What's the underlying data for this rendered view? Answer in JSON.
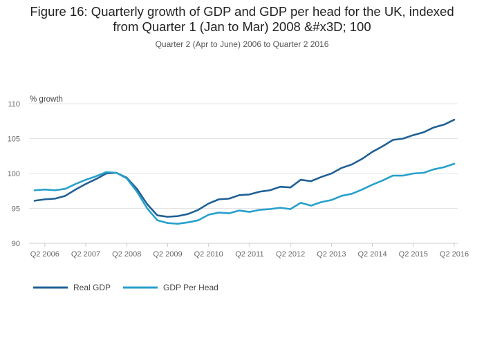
{
  "title_line1": "Figure 16: Quarterly growth of GDP and GDP per head for the UK, indexed",
  "title_line2": "from Quarter 1 (Jan to Mar) 2008 &#x3D; 100",
  "subtitle": "Quarter 2 (Apr to June) 2006 to Quarter 2 2016",
  "colors": {
    "real_gdp": "#206095",
    "gdp_per_head": "#27a0cc",
    "grid": "#e4e4e4",
    "axis": "#cccccc"
  },
  "chart_data": {
    "type": "line",
    "ylabel": "% growth",
    "ylim": [
      90,
      110
    ],
    "yticks": [
      90,
      95,
      100,
      105,
      110
    ],
    "x_tick_labels": [
      "Q2 2006",
      "Q2 2007",
      "Q2 2008",
      "Q2 2009",
      "Q2 2010",
      "Q2 2011",
      "Q2 2012",
      "Q2 2013",
      "Q2 2014",
      "Q2 2015",
      "Q2 2016"
    ],
    "categories": [
      "Q1 2006",
      "Q2 2006",
      "Q3 2006",
      "Q4 2006",
      "Q1 2007",
      "Q2 2007",
      "Q3 2007",
      "Q4 2007",
      "Q1 2008",
      "Q2 2008",
      "Q3 2008",
      "Q4 2008",
      "Q1 2009",
      "Q2 2009",
      "Q3 2009",
      "Q4 2009",
      "Q1 2010",
      "Q2 2010",
      "Q3 2010",
      "Q4 2010",
      "Q1 2011",
      "Q2 2011",
      "Q3 2011",
      "Q4 2011",
      "Q1 2012",
      "Q2 2012",
      "Q3 2012",
      "Q4 2012",
      "Q1 2013",
      "Q2 2013",
      "Q3 2013",
      "Q4 2013",
      "Q1 2014",
      "Q2 2014",
      "Q3 2014",
      "Q4 2014",
      "Q1 2015",
      "Q2 2015",
      "Q3 2015",
      "Q4 2015",
      "Q1 2016",
      "Q2 2016"
    ],
    "series": [
      {
        "name": "Real GDP",
        "values": [
          96.1,
          96.3,
          96.4,
          96.8,
          97.7,
          98.5,
          99.2,
          100.0,
          100.1,
          99.4,
          97.8,
          95.6,
          94.0,
          93.8,
          93.9,
          94.2,
          94.8,
          95.7,
          96.3,
          96.4,
          96.9,
          97.0,
          97.4,
          97.6,
          98.1,
          98.0,
          99.1,
          98.9,
          99.5,
          100.0,
          100.8,
          101.3,
          102.1,
          103.1,
          103.9,
          104.8,
          105.0,
          105.5,
          105.9,
          106.6,
          107.0,
          107.7
        ]
      },
      {
        "name": "GDP Per Head",
        "values": [
          97.6,
          97.7,
          97.6,
          97.8,
          98.5,
          99.1,
          99.6,
          100.2,
          100.1,
          99.3,
          97.4,
          95.0,
          93.3,
          92.9,
          92.8,
          93.0,
          93.3,
          94.1,
          94.4,
          94.3,
          94.7,
          94.5,
          94.8,
          94.9,
          95.1,
          94.9,
          95.8,
          95.4,
          95.9,
          96.2,
          96.8,
          97.1,
          97.7,
          98.4,
          99.0,
          99.7,
          99.7,
          100.0,
          100.1,
          100.6,
          100.9,
          101.4
        ]
      }
    ],
    "grid": true,
    "legend": "bottom-left"
  }
}
